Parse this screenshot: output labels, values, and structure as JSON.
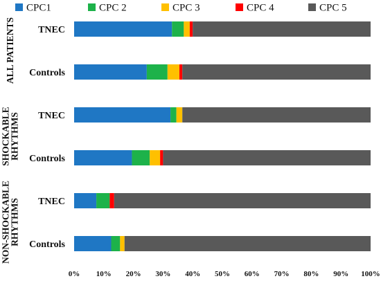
{
  "chart_data": {
    "type": "bar",
    "orientation": "horizontal",
    "stacked": true,
    "percent": true,
    "title": "",
    "xlabel": "",
    "ylabel": "",
    "xlim": [
      0,
      100
    ],
    "grid": false,
    "legend_position": "top",
    "groups": [
      {
        "label": "ALL PATIENTS",
        "categories": [
          "TNEC",
          "Controls"
        ]
      },
      {
        "label": "SHOCKABLE RHYTHMS",
        "categories": [
          "TNEC",
          "Controls"
        ]
      },
      {
        "label": "NON-SHOCKABLE RHYTHMS",
        "categories": [
          "TNEC",
          "Controls"
        ]
      }
    ],
    "categories": [
      "TNEC",
      "Controls",
      "TNEC",
      "Controls",
      "TNEC",
      "Controls"
    ],
    "x_ticks": [
      "0%",
      "10%",
      "20%",
      "30%",
      "40%",
      "50%",
      "60%",
      "70%",
      "80%",
      "90%",
      "100%"
    ],
    "series": [
      {
        "name": "CPC1",
        "color": "#1f77c4",
        "values": [
          33,
          24.5,
          32.5,
          19.5,
          7.5,
          12.5
        ]
      },
      {
        "name": "CPC 2",
        "color": "#1db24a",
        "values": [
          4,
          7,
          2,
          6,
          4.5,
          3
        ]
      },
      {
        "name": "CPC 3",
        "color": "#ffc000",
        "values": [
          2,
          4,
          2,
          3.5,
          0,
          1.5
        ]
      },
      {
        "name": "CPC 4",
        "color": "#ff0000",
        "values": [
          1,
          1,
          0,
          1,
          1.5,
          0
        ]
      },
      {
        "name": "CPC 5",
        "color": "#595959",
        "values": [
          60,
          63.5,
          63.5,
          70,
          86.5,
          83
        ]
      }
    ]
  }
}
